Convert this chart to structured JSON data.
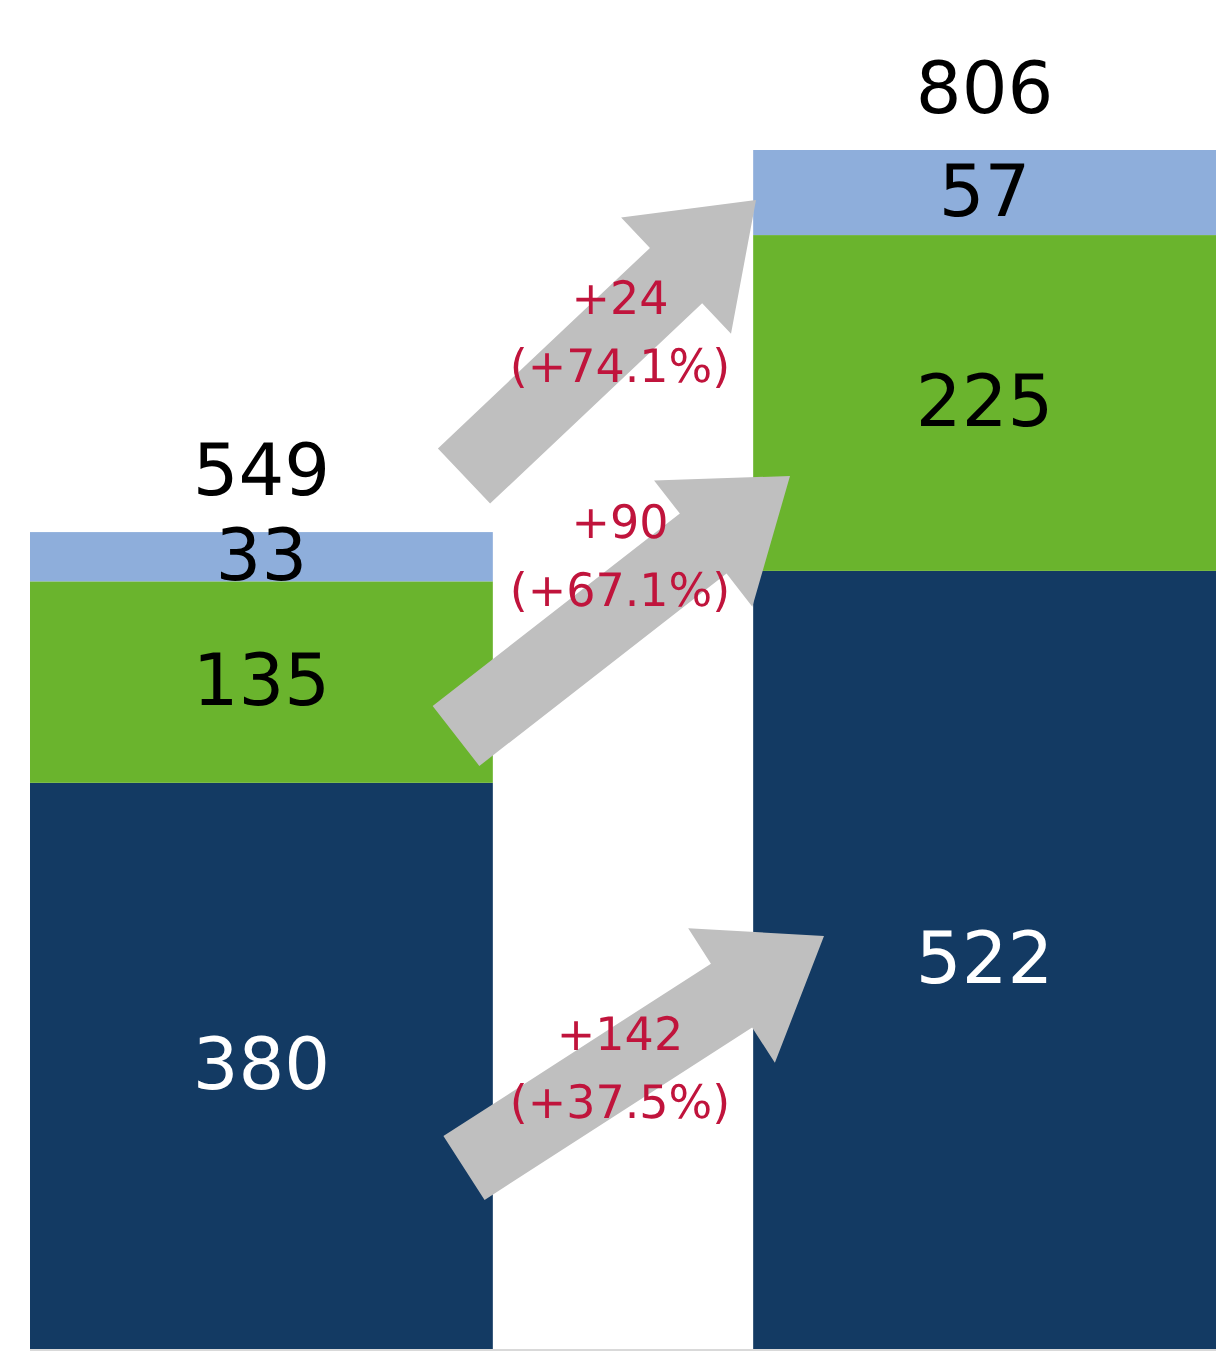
{
  "chart_data": {
    "type": "bar",
    "stacked": true,
    "categories": [
      null,
      null
    ],
    "series": [
      {
        "color": "#133a63",
        "values": [
          380,
          522
        ]
      },
      {
        "color": "#6ab42d",
        "values": [
          135,
          225
        ]
      },
      {
        "color": "#8eaedb",
        "values": [
          33,
          57
        ]
      }
    ],
    "data_labels": true,
    "totals": [
      "549",
      "806"
    ],
    "annotations": [
      "+24\n(+74.1%)",
      "+90\n(+67.1%)",
      "+142\n(+37.5%)"
    ]
  }
}
